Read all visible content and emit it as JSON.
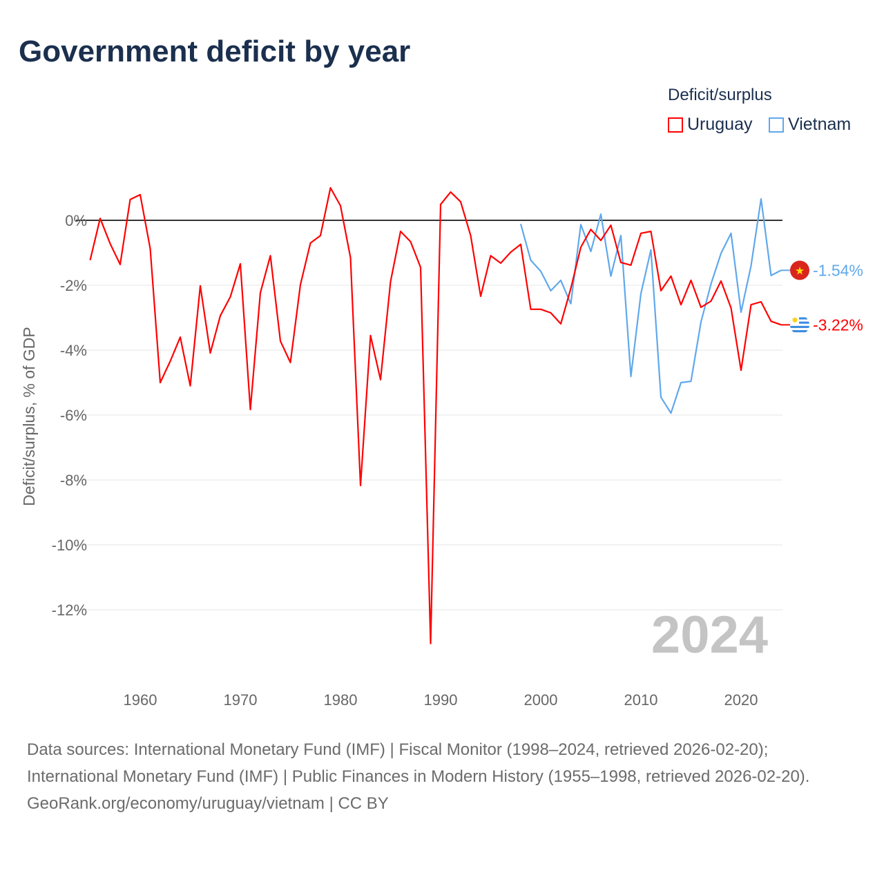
{
  "title": "Government deficit by year",
  "legend": {
    "title": "Deficit/surplus",
    "items": [
      "Uruguay",
      "Vietnam"
    ]
  },
  "footer": {
    "sources": "Data sources: International Monetary Fund (IMF) | Fiscal Monitor (1998–2024, retrieved 2026-02-20); International Monetary Fund (IMF) | Public Finances in Modern History (1955–1998, retrieved 2026-02-20).",
    "credit": "GeoRank.org/economy/uruguay/vietnam | CC BY"
  },
  "chart_data": {
    "type": "line",
    "title": "Government deficit by year",
    "ylabel": "Deficit/surplus, % of GDP",
    "xlabel": "",
    "year_watermark": "2024",
    "xlim": [
      1954.5,
      2024.5
    ],
    "ylim": [
      -14,
      1.5
    ],
    "x_ticks": [
      1960,
      1970,
      1980,
      1990,
      2000,
      2010,
      2020
    ],
    "y_ticks": [
      0,
      -2,
      -4,
      -6,
      -8,
      -10,
      -12
    ],
    "y_tick_labels": [
      "0%",
      "-2%",
      "-4%",
      "-6%",
      "-8%",
      "-10%",
      "-12%"
    ],
    "series": [
      {
        "name": "Uruguay",
        "color": "#ff0000",
        "end_label": "-3.22%",
        "start_year": 1955,
        "values": [
          -1.23,
          0.06,
          -0.72,
          -1.36,
          0.64,
          0.79,
          -0.87,
          -5.0,
          -4.34,
          -3.6,
          -5.1,
          -2.02,
          -4.09,
          -2.94,
          -2.36,
          -1.34,
          -5.83,
          -2.23,
          -1.09,
          -3.72,
          -4.38,
          -1.98,
          -0.7,
          -0.47,
          1.0,
          0.45,
          -1.15,
          -8.17,
          -3.55,
          -4.91,
          -1.89,
          -0.34,
          -0.66,
          -1.45,
          -13.04,
          0.49,
          0.87,
          0.57,
          -0.47,
          -2.34,
          -1.09,
          -1.32,
          -0.98,
          -0.74,
          -2.74,
          -2.74,
          -2.85,
          -3.19,
          -2.1,
          -0.83,
          -0.28,
          -0.62,
          -0.15,
          -1.3,
          -1.38,
          -0.4,
          -0.34,
          -2.17,
          -1.72,
          -2.6,
          -1.85,
          -2.68,
          -2.49,
          -1.87,
          -2.7,
          -4.62,
          -2.6,
          -2.51,
          -3.11,
          -3.22
        ]
      },
      {
        "name": "Vietnam",
        "color": "#5fa8ec",
        "end_label": "-1.54%",
        "start_year": 1998,
        "values": [
          -0.11,
          -1.23,
          -1.57,
          -2.17,
          -1.85,
          -2.57,
          -0.13,
          -0.96,
          0.19,
          -1.72,
          -0.47,
          -4.81,
          -2.26,
          -0.91,
          -5.45,
          -5.94,
          -5.0,
          -4.96,
          -3.13,
          -1.96,
          -1.02,
          -0.4,
          -2.83,
          -1.4,
          0.66,
          -1.7,
          -1.54
        ]
      }
    ]
  }
}
